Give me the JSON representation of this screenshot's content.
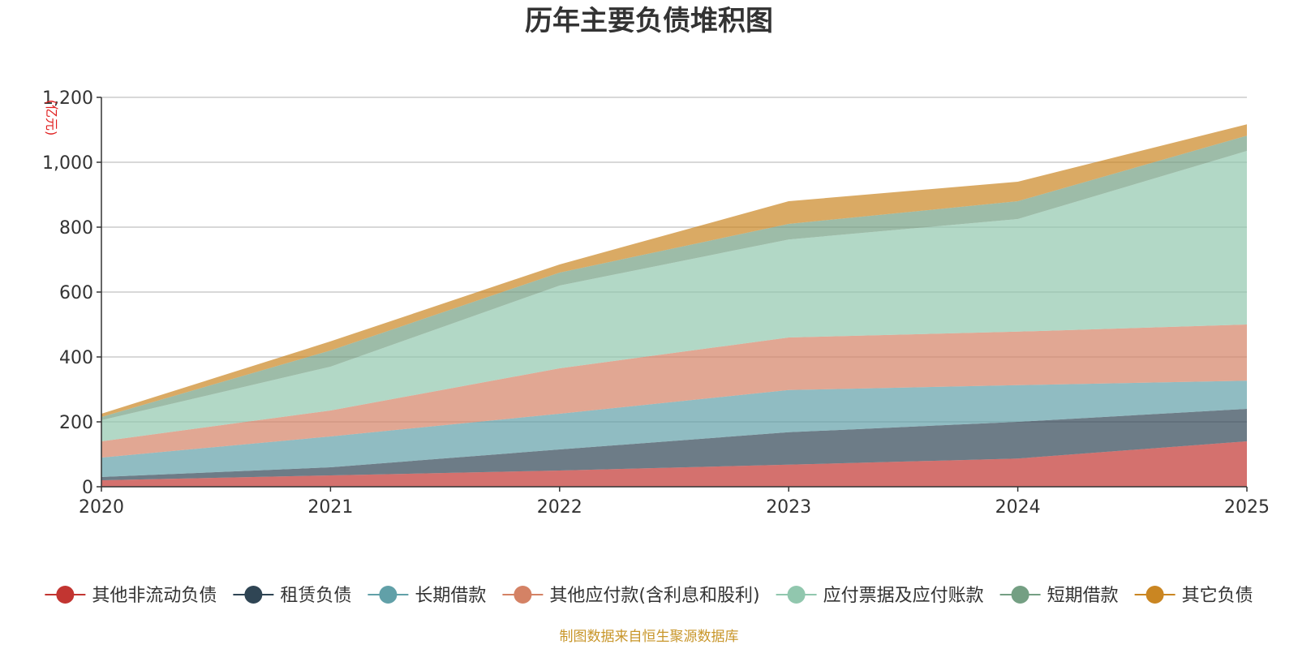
{
  "chart_data": {
    "type": "area",
    "stacked": true,
    "title": "历年主要负债堆积图",
    "ylabel": "(亿元)",
    "ylim": [
      0,
      1200
    ],
    "yticks": [
      "0",
      "200",
      "400",
      "600",
      "800",
      "1,000",
      "1,200"
    ],
    "ytick_values": [
      0,
      200,
      400,
      600,
      800,
      1000,
      1200
    ],
    "categories": [
      "2020",
      "2021",
      "2022",
      "2023",
      "2024",
      "2025"
    ],
    "series": [
      {
        "name": "其他非流动负债",
        "color": "#c23531",
        "values": [
          20,
          35,
          50,
          68,
          87,
          140
        ]
      },
      {
        "name": "租赁负债",
        "color": "#2f4554",
        "values": [
          10,
          25,
          65,
          100,
          113,
          100
        ]
      },
      {
        "name": "长期借款",
        "color": "#61a0a8",
        "values": [
          60,
          95,
          110,
          130,
          113,
          87
        ]
      },
      {
        "name": "其他应付款(含利息和股利)",
        "color": "#d48265",
        "values": [
          50,
          80,
          140,
          162,
          165,
          173
        ]
      },
      {
        "name": "应付票据及应付账款",
        "color": "#91c7ae",
        "values": [
          65,
          135,
          255,
          302,
          347,
          535
        ]
      },
      {
        "name": "短期借款",
        "color": "#749f83",
        "values": [
          10,
          50,
          40,
          48,
          55,
          47
        ]
      },
      {
        "name": "其它负债",
        "color": "#ca8622",
        "values": [
          10,
          28,
          25,
          70,
          60,
          35
        ]
      }
    ],
    "legend_position": "bottom",
    "grid": true
  },
  "footer": {
    "source": "制图数据来自恒生聚源数据库"
  }
}
